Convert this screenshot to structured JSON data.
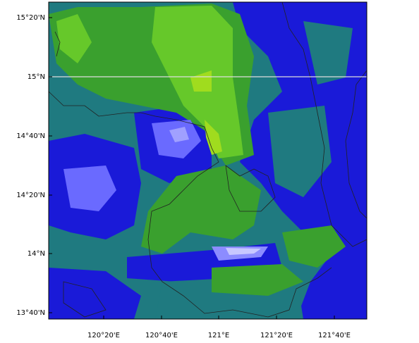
{
  "map": {
    "lat_labels": [
      "15°20'N",
      "15°N",
      "14°40'N",
      "14°20'N",
      "14°N",
      "13°40'N"
    ],
    "lon_labels": [
      "120°20'E",
      "120°40'E",
      "121°E",
      "121°20'E",
      "121°40'E"
    ]
  }
}
